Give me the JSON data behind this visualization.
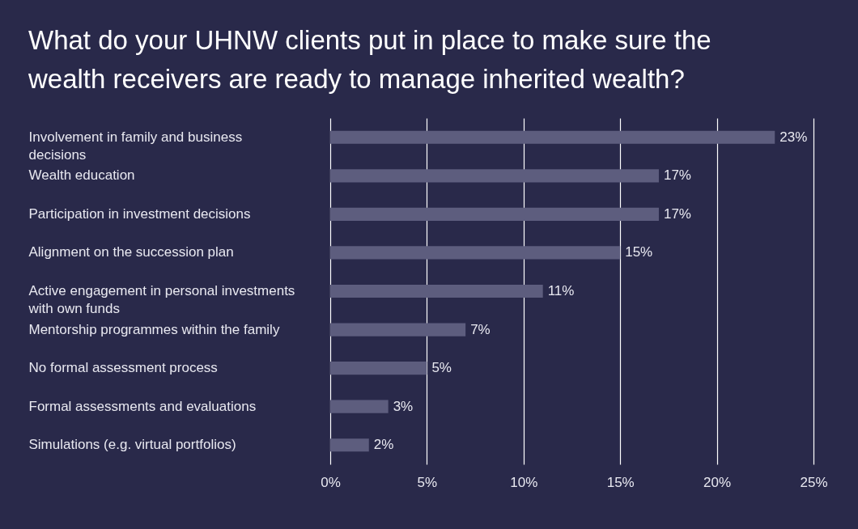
{
  "chart_data": {
    "type": "bar",
    "orientation": "horizontal",
    "title": "What do your UHNW clients put in place to make sure the wealth receivers are ready to manage inherited wealth?",
    "categories": [
      "Involvement in family and business decisions",
      "Wealth education",
      "Participation in investment decisions",
      "Alignment on the succession plan",
      "Active engagement in personal investments with own funds",
      "Mentorship programmes within the family",
      "No formal assessment process",
      "Formal assessments and evaluations",
      "Simulations (e.g. virtual portfolios)"
    ],
    "values": [
      23,
      17,
      17,
      15,
      11,
      7,
      5,
      3,
      2
    ],
    "value_labels": [
      "23%",
      "17%",
      "17%",
      "15%",
      "11%",
      "7%",
      "5%",
      "3%",
      "2%"
    ],
    "color": "#5d5d7e",
    "xlim": [
      0,
      25
    ],
    "xticks": [
      {
        "value": 0,
        "label": "0%"
      },
      {
        "value": 5,
        "label": "5%"
      },
      {
        "value": 10,
        "label": "10%"
      },
      {
        "value": 15,
        "label": "15%"
      },
      {
        "value": 20,
        "label": "20%"
      },
      {
        "value": 25,
        "label": "25%"
      }
    ],
    "grid": "x"
  }
}
